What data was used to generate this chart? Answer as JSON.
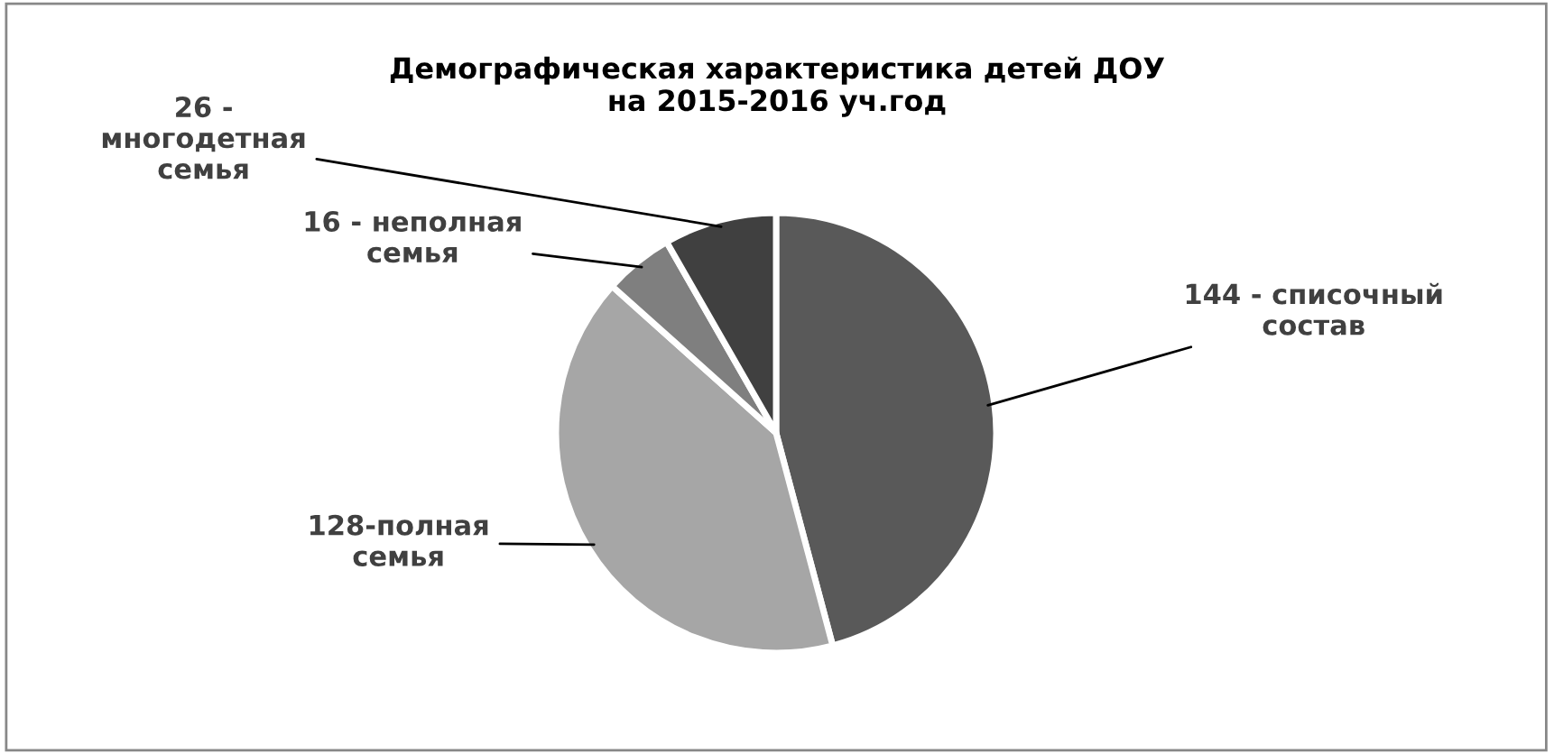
{
  "chart_data": {
    "type": "pie",
    "title": "Демографическая характеристика детей ДОУ\nна 2015-2016 уч.год",
    "categories": [
      "144 - списочный\nсостав",
      "128-полная\nсемья",
      "16 - неполная\nсемья",
      "26 -\nмногодетная\nсемья"
    ],
    "values": [
      144,
      128,
      16,
      26
    ],
    "colors": [
      "#595959",
      "#a6a6a6",
      "#7f7f7f",
      "#404040"
    ],
    "legend": false
  }
}
